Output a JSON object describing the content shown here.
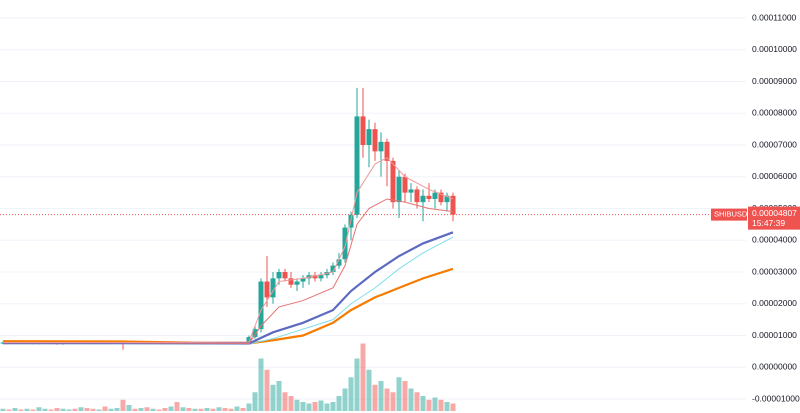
{
  "chart_data": {
    "type": "candlestick",
    "ylim": [
      -1e-05,
      0.00011
    ],
    "yticks": [
      {
        "value": -1e-05,
        "label": "-0.00001000"
      },
      {
        "value": 0,
        "label": "0.00000000"
      },
      {
        "value": 1e-05,
        "label": "0.00001000"
      },
      {
        "value": 2e-05,
        "label": "0.00002000"
      },
      {
        "value": 3e-05,
        "label": "0.00003000"
      },
      {
        "value": 4e-05,
        "label": "0.00004000"
      },
      {
        "value": 5e-05,
        "label": "0.00005000"
      },
      {
        "value": 6e-05,
        "label": "0.00006000"
      },
      {
        "value": 7e-05,
        "label": "0.00007000"
      },
      {
        "value": 8e-05,
        "label": "0.00008000"
      },
      {
        "value": 9e-05,
        "label": "0.00009000"
      },
      {
        "value": 0.0001,
        "label": "0.00010000"
      },
      {
        "value": 0.00011,
        "label": "0.00011000"
      }
    ],
    "grid": true,
    "up_color": "#26a69a",
    "down_color": "#ef5350",
    "symbol": "SHIBUSDT",
    "last_price": {
      "value": 4.807e-05,
      "label": "0.00004807"
    },
    "countdown": "15:47:39",
    "open": [
      7.6e-06,
      7.8e-06,
      7.7e-06,
      7.9e-06,
      7.6e-06,
      7.8e-06,
      7.5e-06,
      7.7e-06,
      7.9e-06,
      7.6e-06,
      7.4e-06,
      7.7e-06,
      7.8e-06,
      7.6e-06,
      7.9e-06,
      7.7e-06,
      7.5e-06,
      7.8e-06,
      7.6e-06,
      7.7e-06,
      7.9e-06,
      7.6e-06,
      7.8e-06,
      7.5e-06,
      7.7e-06,
      7.6e-06,
      7.8e-06,
      7.7e-06,
      7.5e-06,
      7.8e-06,
      7.6e-06,
      7.7e-06,
      7.6e-06,
      7.8e-06,
      7.5e-06,
      7.7e-06,
      7.6e-06,
      7.8e-06,
      7.7e-06,
      7.6e-06,
      7.7e-06,
      7.5e-06,
      9.5e-06,
      1.2e-05,
      2.7e-05,
      2.2e-05,
      2.8e-05,
      3e-05,
      2.8e-05,
      2.6e-05,
      2.7e-05,
      2.8e-05,
      2.9e-05,
      2.8e-05,
      2.9e-05,
      3e-05,
      3.2e-05,
      3.4e-05,
      4.4e-05,
      4.8e-05,
      7.9e-05,
      7e-05,
      7.5e-05,
      6.8e-05,
      7.1e-05,
      6.5e-05,
      5.2e-05,
      6e-05,
      5.5e-05,
      5.6e-05,
      5.2e-05,
      5.4e-05,
      5.3e-05,
      5.5e-05,
      5.2e-05,
      5.4e-05
    ],
    "high": [
      8.1e-06,
      8.1e-06,
      8.2e-06,
      8.2e-06,
      8.1e-06,
      8.1e-06,
      8e-06,
      8.2e-06,
      8.2e-06,
      7.9e-06,
      8e-06,
      8.1e-06,
      8.1e-06,
      8.2e-06,
      8.2e-06,
      8e-06,
      8.1e-06,
      8.1e-06,
      8e-06,
      8.2e-06,
      8.2e-06,
      8.1e-06,
      8.1e-06,
      8e-06,
      7.9e-06,
      8.1e-06,
      8.1e-06,
      8e-06,
      8.1e-06,
      8.1e-06,
      8e-06,
      8e-06,
      8.1e-06,
      8.1e-06,
      8e-06,
      8e-06,
      8.1e-06,
      8.1e-06,
      8e-06,
      8e-06,
      8e-06,
      1e-05,
      1.3e-05,
      2.8e-05,
      3.5e-05,
      3e-05,
      3.1e-05,
      3.1e-05,
      3e-05,
      2.8e-05,
      2.9e-05,
      3e-05,
      3e-05,
      3e-05,
      3.1e-05,
      3.3e-05,
      3.6e-05,
      4.5e-05,
      4.9e-05,
      8.8e-05,
      8.8e-05,
      7.8e-05,
      7.7e-05,
      7.4e-05,
      7.2e-05,
      6.6e-05,
      6.2e-05,
      6.1e-05,
      5.8e-05,
      5.7e-05,
      5.6e-05,
      5.8e-05,
      5.6e-05,
      5.6e-05,
      5.5e-05,
      5.5e-05
    ],
    "low": [
      7.3e-06,
      7.4e-06,
      7.4e-06,
      7.3e-06,
      7.3e-06,
      7.2e-06,
      7.2e-06,
      7.4e-06,
      7.3e-06,
      7.1e-06,
      7.1e-06,
      7.4e-06,
      7.3e-06,
      7.3e-06,
      7.4e-06,
      7.2e-06,
      7.2e-06,
      7.3e-06,
      7.3e-06,
      7.4e-06,
      5.5e-06,
      7.3e-06,
      7.2e-06,
      7.2e-06,
      7.3e-06,
      7.3e-06,
      7.4e-06,
      7.2e-06,
      7.2e-06,
      7.3e-06,
      7.3e-06,
      7.3e-06,
      7.3e-06,
      7.2e-06,
      7.2e-06,
      7.3e-06,
      7.3e-06,
      7.4e-06,
      7.3e-06,
      7.3e-06,
      7.2e-06,
      7.3e-06,
      9e-06,
      1.1e-05,
      1.9e-05,
      2e-05,
      2.6e-05,
      2.7e-05,
      2.5e-05,
      2.4e-05,
      2.5e-05,
      2.6e-05,
      2.7e-05,
      2.7e-05,
      2.8e-05,
      2.9e-05,
      3.1e-05,
      3.3e-05,
      4e-05,
      4.7e-05,
      6.6e-05,
      6.3e-05,
      6.5e-05,
      6e-05,
      5.7e-05,
      5e-05,
      4.7e-05,
      5.2e-05,
      5.2e-05,
      5e-05,
      4.6e-05,
      5.2e-05,
      5e-05,
      5.1e-05,
      4.9e-05,
      4.6e-05
    ],
    "close": [
      7.8e-06,
      7.7e-06,
      7.9e-06,
      7.6e-06,
      7.8e-06,
      7.5e-06,
      7.7e-06,
      7.9e-06,
      7.6e-06,
      7.4e-06,
      7.7e-06,
      7.8e-06,
      7.6e-06,
      7.9e-06,
      7.7e-06,
      7.5e-06,
      7.8e-06,
      7.6e-06,
      7.7e-06,
      7.9e-06,
      7.6e-06,
      7.8e-06,
      7.5e-06,
      7.7e-06,
      7.6e-06,
      7.8e-06,
      7.7e-06,
      7.5e-06,
      7.8e-06,
      7.6e-06,
      7.7e-06,
      7.6e-06,
      7.8e-06,
      7.5e-06,
      7.7e-06,
      7.6e-06,
      7.8e-06,
      7.7e-06,
      7.6e-06,
      7.7e-06,
      7.5e-06,
      9.5e-06,
      1.2e-05,
      2.7e-05,
      2.2e-05,
      2.8e-05,
      3e-05,
      2.8e-05,
      2.6e-05,
      2.7e-05,
      2.8e-05,
      2.9e-05,
      2.8e-05,
      2.9e-05,
      3e-05,
      3.2e-05,
      3.4e-05,
      4.4e-05,
      4.8e-05,
      7.9e-05,
      7e-05,
      7.5e-05,
      6.8e-05,
      7.1e-05,
      6.5e-05,
      5.2e-05,
      6e-05,
      5.5e-05,
      5.6e-05,
      5.2e-05,
      5.4e-05,
      5.3e-05,
      5.5e-05,
      5.2e-05,
      5.4e-05,
      4.807e-05
    ],
    "volume": [
      3,
      2,
      4,
      2,
      3,
      2,
      5,
      3,
      2,
      4,
      3,
      2,
      3,
      5,
      4,
      3,
      2,
      6,
      3,
      4,
      15,
      8,
      3,
      4,
      5,
      3,
      2,
      4,
      6,
      12,
      5,
      4,
      3,
      3,
      4,
      3,
      5,
      4,
      3,
      6,
      4,
      10,
      25,
      70,
      55,
      35,
      40,
      25,
      20,
      15,
      12,
      10,
      12,
      14,
      10,
      12,
      20,
      30,
      45,
      70,
      90,
      55,
      35,
      40,
      30,
      25,
      45,
      40,
      30,
      25,
      20,
      15,
      18,
      15,
      12,
      10
    ],
    "series": [
      {
        "color": "#f57c00",
        "width": 2.2,
        "x": [
          0,
          20,
          41,
          45,
          50,
          55,
          58,
          62,
          66,
          70,
          75
        ],
        "values": [
          8.2e-06,
          8.1e-06,
          7.5e-06,
          8.5e-06,
          1e-05,
          1.4e-05,
          1.8e-05,
          2.2e-05,
          2.5e-05,
          2.8e-05,
          3.1e-05
        ]
      },
      {
        "color": "#80deea",
        "width": 1,
        "x": [
          0,
          20,
          41,
          45,
          50,
          55,
          58,
          62,
          66,
          70,
          75
        ],
        "values": [
          7.4e-06,
          7.4e-06,
          7.3e-06,
          9e-06,
          1.2e-05,
          1.5e-05,
          2e-05,
          2.5e-05,
          3.1e-05,
          3.6e-05,
          4.1e-05
        ]
      },
      {
        "color": "#5c6bc0",
        "width": 2.2,
        "x": [
          0,
          20,
          41,
          45,
          50,
          55,
          58,
          62,
          66,
          70,
          75
        ],
        "values": [
          7.6e-06,
          7.6e-06,
          7.5e-06,
          1.1e-05,
          1.4e-05,
          1.8e-05,
          2.4e-05,
          3e-05,
          3.5e-05,
          3.9e-05,
          4.25e-05
        ]
      },
      {
        "color": "#e57373",
        "width": 1,
        "x": [
          0,
          20,
          41,
          43,
          46,
          50,
          55,
          57,
          59,
          61,
          64,
          67,
          71,
          75
        ],
        "values": [
          7.7e-06,
          7.7e-06,
          7.5e-06,
          1.3e-05,
          1.9e-05,
          2.1e-05,
          2.5e-05,
          3.2e-05,
          4.5e-05,
          5e-05,
          5.3e-05,
          5.2e-05,
          5e-05,
          4.9e-05
        ]
      },
      {
        "color": "#ef9a9a",
        "width": 1,
        "x": [
          0,
          20,
          41,
          43,
          46,
          50,
          55,
          57,
          59,
          62,
          64,
          67,
          71,
          75
        ],
        "values": [
          7.8e-06,
          7.8e-06,
          8e-06,
          1.8e-05,
          2.7e-05,
          2.8e-05,
          3e-05,
          3.8e-05,
          5.5e-05,
          6.4e-05,
          6.6e-05,
          6e-05,
          5.6e-05,
          5.3e-05
        ]
      }
    ]
  }
}
